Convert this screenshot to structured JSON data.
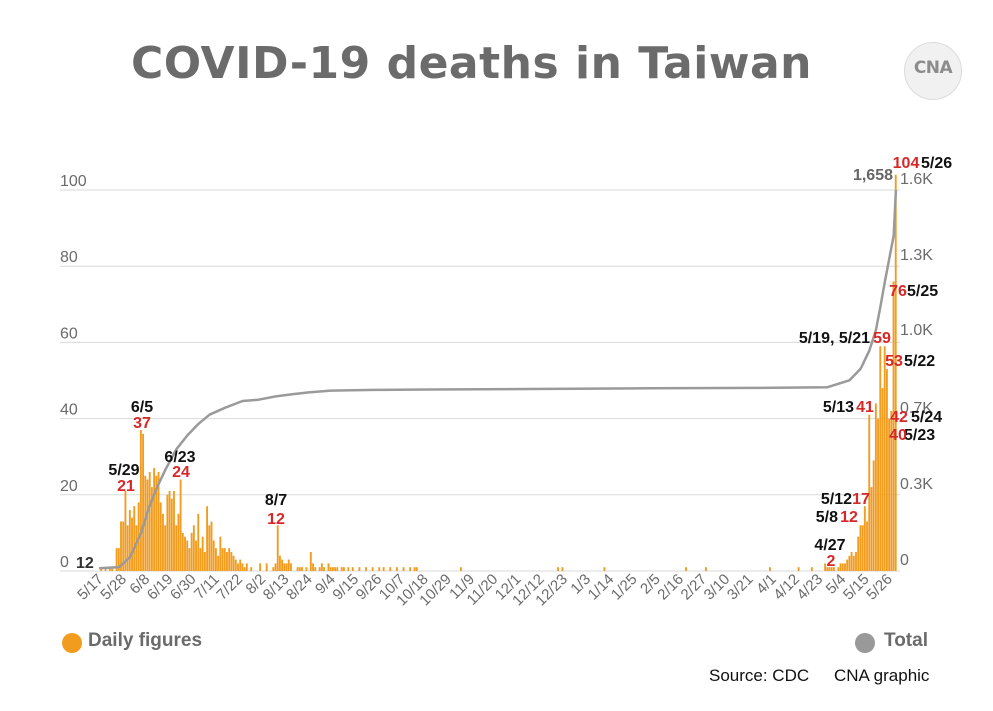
{
  "header": {
    "title": "COVID-19 deaths in Taiwan",
    "logo_text": "CNA"
  },
  "footer": {
    "source": "Source: CDC",
    "credit": "CNA graphic"
  },
  "legend": [
    {
      "label": "Daily figures",
      "color": "#f29c1f"
    },
    {
      "label": "Total",
      "color": "#999999"
    }
  ],
  "colors": {
    "bar": "#f29c1f",
    "line": "#9a9a9a",
    "grid": "#d9d9d9",
    "annotation_value": "#d62828",
    "annotation_date": "#111111",
    "axis_text": "#6b6b6b"
  },
  "chart_data": {
    "type": "bar",
    "title": "COVID-19 deaths in Taiwan",
    "grid": true,
    "legend_position": "bottom",
    "x_tick_labels": [
      "5/17",
      "5/28",
      "6/8",
      "6/19",
      "6/30",
      "7/11",
      "7/22",
      "8/2",
      "8/13",
      "8/24",
      "9/4",
      "9/15",
      "9/26",
      "10/7",
      "10/18",
      "10/29",
      "11/9",
      "11/20",
      "12/1",
      "12/12",
      "12/23",
      "1/3",
      "1/14",
      "1/25",
      "2/5",
      "2/16",
      "2/27",
      "3/10",
      "3/21",
      "4/1",
      "4/12",
      "4/23",
      "5/4",
      "5/15",
      "5/26"
    ],
    "y_left": {
      "range": [
        0,
        100
      ],
      "ticks": [
        0,
        20,
        40,
        60,
        80,
        100
      ]
    },
    "y_right": {
      "range_values": [
        0,
        1658
      ],
      "ticks": [
        "0",
        "0.3K",
        "0.7K",
        "1.0K",
        "1.3K",
        "1.6K"
      ]
    },
    "series": [
      {
        "name": "Daily figures",
        "chart_type": "bar",
        "data": {
          "1": 1,
          "3": 1,
          "5": 1,
          "6": 1,
          "8": 6,
          "9": 6,
          "10": 13,
          "11": 13,
          "12": 21,
          "13": 12,
          "14": 16,
          "15": 14,
          "16": 17,
          "17": 12,
          "18": 18,
          "19": 37,
          "20": 36,
          "21": 25,
          "22": 24,
          "23": 26,
          "24": 22,
          "25": 27,
          "26": 25,
          "27": 26,
          "28": 18,
          "29": 15,
          "30": 12,
          "31": 20,
          "32": 21,
          "33": 19,
          "34": 21,
          "35": 12,
          "36": 15,
          "37": 24,
          "38": 10,
          "39": 9,
          "40": 8,
          "41": 6,
          "42": 10,
          "43": 12,
          "44": 8,
          "45": 15,
          "46": 6,
          "47": 9,
          "48": 5,
          "49": 17,
          "50": 12,
          "51": 13,
          "52": 8,
          "53": 6,
          "54": 4,
          "55": 9,
          "56": 6,
          "57": 6,
          "58": 5,
          "59": 6,
          "60": 5,
          "61": 4,
          "62": 3,
          "63": 2,
          "64": 3,
          "65": 2,
          "66": 1,
          "67": 2,
          "69": 1,
          "73": 2,
          "76": 2,
          "79": 1,
          "80": 2,
          "81": 12,
          "82": 4,
          "83": 3,
          "84": 2,
          "85": 2,
          "86": 3,
          "87": 2,
          "90": 1,
          "91": 1,
          "92": 1,
          "94": 1,
          "96": 5,
          "97": 2,
          "98": 1,
          "100": 1,
          "101": 2,
          "102": 1,
          "104": 2,
          "105": 1,
          "106": 1,
          "107": 1,
          "108": 1,
          "110": 1,
          "111": 1,
          "113": 1,
          "115": 1,
          "118": 1,
          "121": 1,
          "124": 1,
          "127": 1,
          "129": 1,
          "132": 1,
          "135": 1,
          "138": 1,
          "141": 1,
          "143": 1,
          "144": 1,
          "164": 1,
          "208": 1,
          "210": 1,
          "229": 1,
          "266": 1,
          "275": 1,
          "304": 1,
          "317": 1,
          "323": 1,
          "329": 2,
          "330": 1,
          "331": 1,
          "332": 1,
          "333": 1,
          "335": 1,
          "336": 2,
          "337": 2,
          "338": 2,
          "339": 3,
          "340": 4,
          "341": 5,
          "342": 4,
          "343": 5,
          "344": 9,
          "345": 12,
          "346": 12,
          "347": 17,
          "348": 13,
          "349": 41,
          "350": 22,
          "351": 29,
          "352": 44,
          "353": 40,
          "354": 59,
          "355": 48,
          "356": 59,
          "357": 53,
          "358": 40,
          "359": 42,
          "360": 76,
          "361": 104
        }
      },
      {
        "name": "Total",
        "chart_type": "line",
        "points": [
          [
            0,
            12
          ],
          [
            9,
            17
          ],
          [
            14,
            60
          ],
          [
            19,
            165
          ],
          [
            22,
            260
          ],
          [
            26,
            360
          ],
          [
            30,
            440
          ],
          [
            35,
            530
          ],
          [
            40,
            590
          ],
          [
            45,
            640
          ],
          [
            50,
            680
          ],
          [
            57,
            710
          ],
          [
            65,
            740
          ],
          [
            72,
            745
          ],
          [
            80,
            760
          ],
          [
            88,
            770
          ],
          [
            95,
            777
          ],
          [
            105,
            785
          ],
          [
            125,
            788
          ],
          [
            150,
            790
          ],
          [
            250,
            795
          ],
          [
            300,
            797
          ],
          [
            330,
            800
          ],
          [
            340,
            830
          ],
          [
            345,
            880
          ],
          [
            349,
            960
          ],
          [
            352,
            1050
          ],
          [
            354,
            1150
          ],
          [
            356,
            1260
          ],
          [
            358,
            1360
          ],
          [
            360,
            1460
          ],
          [
            361,
            1658
          ]
        ]
      }
    ],
    "annotations": [
      {
        "date": "5/17",
        "value": "12"
      },
      {
        "date": "5/29",
        "value": "21"
      },
      {
        "date": "6/5",
        "value": "37"
      },
      {
        "date": "6/23",
        "value": "24"
      },
      {
        "date": "8/7",
        "value": "12"
      },
      {
        "date": "4/27",
        "value": "2"
      },
      {
        "date": "5/8",
        "value": "12"
      },
      {
        "date": "5/12",
        "value": "17"
      },
      {
        "date": "5/13",
        "value": "41"
      },
      {
        "date": "5/19, 5/21",
        "value": "59"
      },
      {
        "date": "5/22",
        "value": "53"
      },
      {
        "date": "5/23",
        "value": "40"
      },
      {
        "date": "5/24",
        "value": "42"
      },
      {
        "date": "5/25",
        "value": "76"
      },
      {
        "date": "5/26",
        "value": "104"
      }
    ],
    "total_label": "1,658"
  }
}
